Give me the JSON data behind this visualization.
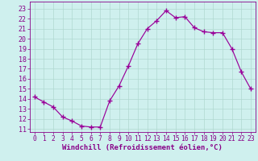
{
  "x": [
    0,
    1,
    2,
    3,
    4,
    5,
    6,
    7,
    8,
    9,
    10,
    11,
    12,
    13,
    14,
    15,
    16,
    17,
    18,
    19,
    20,
    21,
    22,
    23
  ],
  "y": [
    14.2,
    13.7,
    13.2,
    12.2,
    11.8,
    11.3,
    11.2,
    11.2,
    13.8,
    15.3,
    17.3,
    19.5,
    21.0,
    21.8,
    22.8,
    22.1,
    22.2,
    21.1,
    20.7,
    20.6,
    20.6,
    19.0,
    16.7,
    15.0
  ],
  "line_color": "#990099",
  "marker": "+",
  "marker_size": 4,
  "marker_lw": 1.0,
  "bg_color": "#cff0ee",
  "grid_color": "#b0d8d0",
  "xlabel": "Windchill (Refroidissement éolien,°C)",
  "ylabel_ticks": [
    11,
    12,
    13,
    14,
    15,
    16,
    17,
    18,
    19,
    20,
    21,
    22,
    23
  ],
  "xlim": [
    -0.5,
    23.5
  ],
  "ylim": [
    10.7,
    23.7
  ],
  "tick_color": "#880088",
  "label_color": "#880088",
  "xlabel_fontsize": 6.5,
  "ytick_fontsize": 6.0,
  "xtick_fontsize": 5.8,
  "line_width": 0.85
}
